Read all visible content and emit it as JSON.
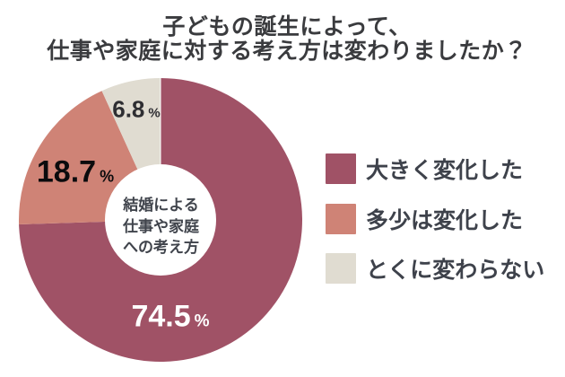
{
  "title": {
    "line1": "子どもの誕生によって、",
    "line2": "仕事や家庭に対する考え方は変わりましたか？"
  },
  "chart_data": {
    "type": "pie",
    "donut": true,
    "title": "子どもの誕生によって、仕事や家庭に対する考え方は変わりましたか？",
    "center_label": "結婚による仕事や家庭への考え方",
    "categories": [
      "大きく変化した",
      "多少は変化した",
      "とくに変わらない"
    ],
    "values": [
      74.5,
      18.7,
      6.8
    ],
    "unit": "%",
    "colors": [
      "#a05266",
      "#cf8376",
      "#e0dcd1"
    ],
    "start_angle_deg": 0,
    "direction": "clockwise",
    "legend_position": "right"
  },
  "donut_center": {
    "line1": "結婚による",
    "line2": "仕事や家庭",
    "line3": "への考え方"
  },
  "slice_labels": [
    {
      "value": "74.5",
      "unit": "%"
    },
    {
      "value": "18.7",
      "unit": "%"
    },
    {
      "value": "6.8",
      "unit": "%"
    }
  ],
  "legend": {
    "items": [
      {
        "label": "大きく変化した",
        "color": "#a05266"
      },
      {
        "label": "多少は変化した",
        "color": "#cf8376"
      },
      {
        "label": "とくに変わらない",
        "color": "#e0dcd1"
      }
    ]
  }
}
